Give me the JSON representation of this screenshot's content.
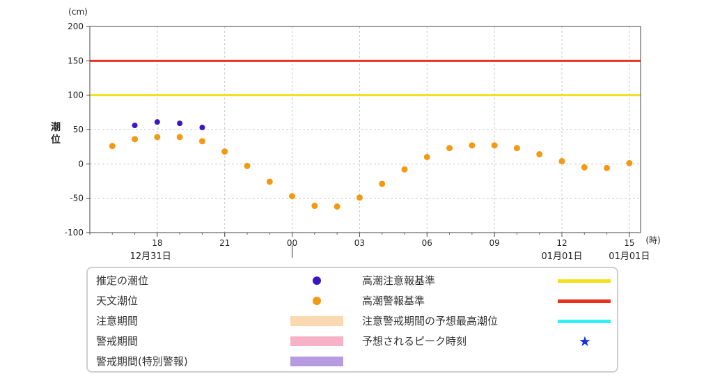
{
  "chart_data": {
    "type": "scatter",
    "y_unit": "(cm)",
    "x_unit": "(時)",
    "ylabel": "潮位",
    "ylim": [
      -100,
      200
    ],
    "yticks": [
      -100,
      -50,
      0,
      50,
      100,
      150,
      200
    ],
    "x_range_hours": [
      15,
      39.5
    ],
    "xticks": [
      {
        "hour": 18,
        "label": "18"
      },
      {
        "hour": 21,
        "label": "21"
      },
      {
        "hour": 24,
        "label": "00"
      },
      {
        "hour": 27,
        "label": "03"
      },
      {
        "hour": 30,
        "label": "06"
      },
      {
        "hour": 33,
        "label": "09"
      },
      {
        "hour": 36,
        "label": "12"
      },
      {
        "hour": 39,
        "label": "15"
      }
    ],
    "date_labels": [
      {
        "hour": 17.7,
        "label": "12月31日"
      },
      {
        "hour": 36,
        "label": "01月01日"
      },
      {
        "hour": 39,
        "label": "01月01日"
      }
    ],
    "date_divider_hour": 24,
    "grid": true,
    "reference_lines": [
      {
        "name": "高潮警報基準",
        "value": 150,
        "color": "#e8321e"
      },
      {
        "name": "高潮注意報基準",
        "value": 100,
        "color": "#f2e01a"
      }
    ],
    "series": [
      {
        "name": "推定の潮位",
        "color": "#3a16c6",
        "points": [
          [
            17,
            56
          ],
          [
            18,
            61
          ],
          [
            19,
            59
          ],
          [
            20,
            53
          ]
        ]
      },
      {
        "name": "天文潮位",
        "color": "#f39a14",
        "points": [
          [
            16,
            26
          ],
          [
            17,
            36
          ],
          [
            18,
            39
          ],
          [
            19,
            39
          ],
          [
            20,
            33
          ],
          [
            21,
            18
          ],
          [
            22,
            -3
          ],
          [
            23,
            -26
          ],
          [
            24,
            -47
          ],
          [
            25,
            -61
          ],
          [
            26,
            -62
          ],
          [
            27,
            -49
          ],
          [
            28,
            -29
          ],
          [
            29,
            -8
          ],
          [
            30,
            10
          ],
          [
            31,
            23
          ],
          [
            32,
            27
          ],
          [
            33,
            27
          ],
          [
            34,
            23
          ],
          [
            35,
            14
          ],
          [
            36,
            4
          ],
          [
            37,
            -5
          ],
          [
            38,
            -6
          ],
          [
            39,
            1
          ]
        ]
      }
    ]
  },
  "legend": {
    "left": [
      {
        "label": "推定の潮位",
        "kind": "dot",
        "color": "#3a16c6"
      },
      {
        "label": "天文潮位",
        "kind": "dot",
        "color": "#f39a14"
      },
      {
        "label": "注意期間",
        "kind": "bar",
        "color": "#fad9b0"
      },
      {
        "label": "警戒期間",
        "kind": "bar",
        "color": "#f8b2c8"
      },
      {
        "label": "警戒期間(特別警報)",
        "kind": "bar",
        "color": "#b69be0"
      }
    ],
    "right": [
      {
        "label": "高潮注意報基準",
        "kind": "line",
        "color": "#f2e01a"
      },
      {
        "label": "高潮警報基準",
        "kind": "line",
        "color": "#e8321e"
      },
      {
        "label": "注意警戒期間の予想最高潮位",
        "kind": "line",
        "color": "#2ff0f4"
      },
      {
        "label": "予想されるピーク時刻",
        "kind": "star",
        "color": "#1a2fd8"
      }
    ]
  }
}
